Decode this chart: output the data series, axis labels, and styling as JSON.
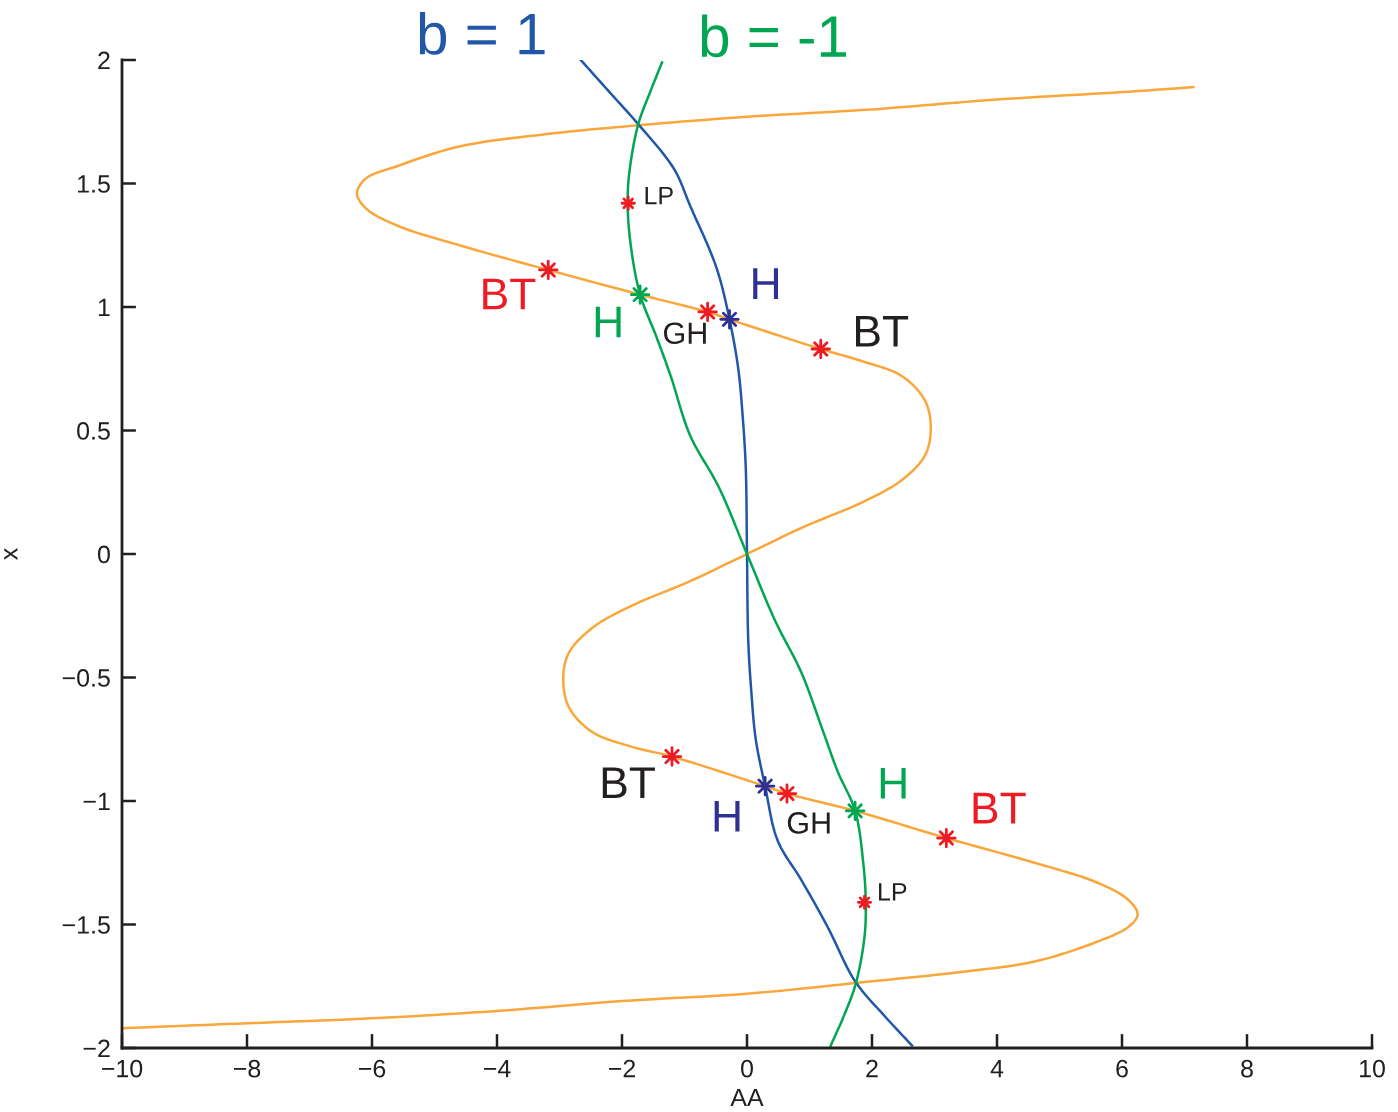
{
  "chart_data": {
    "type": "line",
    "xlabel": "AA",
    "ylabel": "x",
    "xlim": [
      -10,
      10
    ],
    "ylim": [
      -2,
      2
    ],
    "xticks": [
      {
        "value": -10,
        "label": "−10"
      },
      {
        "value": -8,
        "label": "−8"
      },
      {
        "value": -6,
        "label": "−6"
      },
      {
        "value": -4,
        "label": "−4"
      },
      {
        "value": -2,
        "label": "−2"
      },
      0,
      2,
      4,
      6,
      8,
      10
    ],
    "yticks": [
      {
        "value": -2,
        "label": "−2"
      },
      {
        "value": -1.5,
        "label": "−1.5"
      },
      {
        "value": -1,
        "label": "−1"
      },
      {
        "value": -0.5,
        "label": "−0.5"
      },
      0,
      0.5,
      1,
      1.5,
      2
    ],
    "series": [
      {
        "color": "#f9a63a",
        "x": [
          -10,
          -8,
          -6,
          -4,
          -2,
          0,
          2,
          3.5,
          4.6,
          5.6,
          6.1,
          6.25,
          6.1,
          5.6,
          4.6,
          3.19,
          1.73,
          0.64,
          0.29,
          -1.2,
          -1.85,
          -2.48,
          -2.85,
          -2.94,
          -2.85,
          -2.48,
          -1.85,
          -0.91,
          0,
          0.91,
          1.85,
          2.48,
          2.85,
          2.94,
          2.85,
          2.48,
          1.85,
          1.18,
          -0.28,
          -0.63,
          -1.71,
          -3.18,
          -4.6,
          -5.6,
          -6.1,
          -6.24,
          -6.1,
          -5.6,
          -4.6,
          -3.2,
          -2,
          0,
          2,
          4,
          6,
          7.14
        ],
        "values": [
          -1.92,
          -1.9,
          -1.88,
          -1.85,
          -1.81,
          -1.78,
          -1.73,
          -1.69,
          -1.65,
          -1.57,
          -1.51,
          -1.46,
          -1.4,
          -1.33,
          -1.25,
          -1.15,
          -1.04,
          -0.97,
          -0.94,
          -0.82,
          -0.78,
          -0.72,
          -0.62,
          -0.5,
          -0.4,
          -0.3,
          -0.21,
          -0.11,
          0,
          0.11,
          0.21,
          0.3,
          0.4,
          0.51,
          0.62,
          0.72,
          0.78,
          0.83,
          0.95,
          0.98,
          1.05,
          1.15,
          1.25,
          1.33,
          1.4,
          1.46,
          1.52,
          1.57,
          1.65,
          1.7,
          1.73,
          1.77,
          1.8,
          1.84,
          1.87,
          1.89
        ]
      },
      {
        "name": "b = 1",
        "color": "#2157a8",
        "x": [
          -2.66,
          -2.2,
          -1.74,
          -1.17,
          -0.91,
          -0.49,
          -0.28,
          -0.14,
          -0.07,
          -0.02,
          0,
          0.02,
          0.07,
          0.14,
          0.29,
          0.49,
          0.87,
          1.29,
          1.73,
          2.2,
          2.64
        ],
        "values": [
          2.0,
          1.87,
          1.74,
          1.56,
          1.41,
          1.16,
          0.95,
          0.75,
          0.56,
          0.35,
          0,
          -0.35,
          -0.56,
          -0.75,
          -0.94,
          -1.16,
          -1.32,
          -1.51,
          -1.73,
          -1.87,
          -1.99
        ]
      },
      {
        "name": "b = -1",
        "color": "#00a651",
        "x": [
          -1.36,
          -1.55,
          -1.74,
          -1.88,
          -1.91,
          -1.86,
          -1.71,
          -1.45,
          -1.22,
          -0.91,
          -0.45,
          0,
          0.45,
          0.87,
          1.22,
          1.45,
          1.73,
          1.86,
          1.9,
          1.88,
          1.74,
          1.55,
          1.34
        ],
        "values": [
          1.99,
          1.87,
          1.74,
          1.55,
          1.42,
          1.25,
          1.05,
          0.88,
          0.72,
          0.48,
          0.27,
          0,
          -0.27,
          -0.48,
          -0.72,
          -0.88,
          -1.04,
          -1.25,
          -1.41,
          -1.55,
          -1.74,
          -1.87,
          -1.99
        ]
      },
      {
        "type": "scatter",
        "marker": "star",
        "color": "#ed1c24",
        "x": [
          -1.9,
          -3.18,
          -0.63,
          1.18,
          -1.2,
          0.64,
          3.19,
          1.88
        ],
        "values": [
          1.42,
          1.15,
          0.98,
          0.83,
          -0.82,
          -0.97,
          -1.15,
          -1.41
        ],
        "sizes": [
          0.5,
          1,
          1,
          1,
          1,
          1,
          1,
          0.5
        ]
      },
      {
        "type": "scatter",
        "marker": "star",
        "color": "#2e3192",
        "x": [
          -0.28,
          0.29
        ],
        "values": [
          0.95,
          -0.94
        ]
      },
      {
        "type": "scatter",
        "marker": "star",
        "color": "#00a651",
        "x": [
          -1.71,
          1.73
        ],
        "values": [
          1.05,
          -1.04
        ]
      }
    ],
    "annotations": [
      {
        "text": "LP",
        "x": -1.9,
        "y": 1.42
      },
      {
        "text": "BT",
        "x": -3.18,
        "y": 1.15
      },
      {
        "text": "H",
        "x": -1.71,
        "y": 1.05
      },
      {
        "text": "GH",
        "x": -0.63,
        "y": 0.98
      },
      {
        "text": "H",
        "x": -0.28,
        "y": 0.95
      },
      {
        "text": "BT",
        "x": 1.18,
        "y": 0.83
      },
      {
        "text": "BT",
        "x": -1.2,
        "y": -0.82
      },
      {
        "text": "H",
        "x": 0.29,
        "y": -0.94
      },
      {
        "text": "GH",
        "x": 0.64,
        "y": -0.97
      },
      {
        "text": "H",
        "x": 1.73,
        "y": -1.04
      },
      {
        "text": "BT",
        "x": 3.19,
        "y": -1.15
      },
      {
        "text": "LP",
        "x": 1.88,
        "y": -1.41
      }
    ]
  }
}
